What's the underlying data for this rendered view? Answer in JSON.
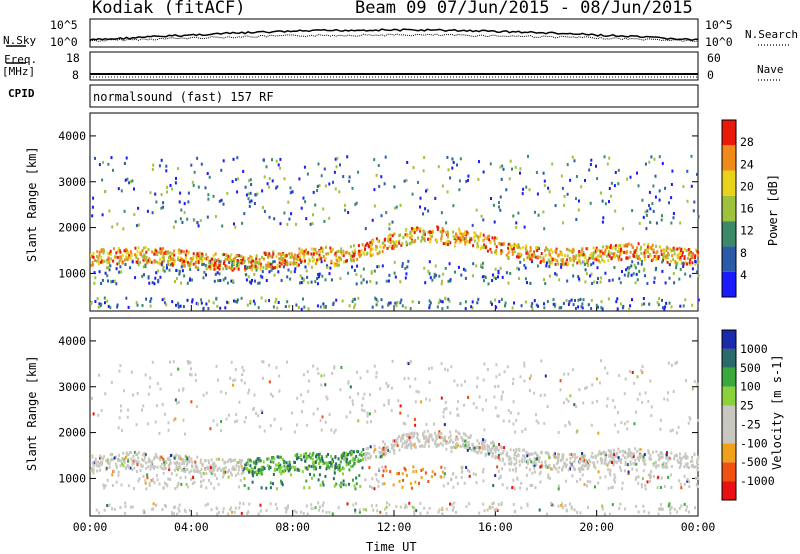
{
  "header": {
    "site": "Kodiak (fitACF)",
    "beam_dates": "Beam 09  07/Jun/2015 - 08/Jun/2015"
  },
  "left_labels": {
    "nsky": "N.Sky",
    "freq": "Freq.",
    "mhz": "[MHz]",
    "cpid": "CPID"
  },
  "right_labels": {
    "nsearch": "N.Search",
    "nave": "Nave"
  },
  "noise_panel": {
    "ticks_left": [
      "10^5",
      "10^0"
    ],
    "ticks_right": [
      "10^5",
      "10^0"
    ]
  },
  "freq_panel": {
    "ticks_left": [
      "18",
      "8"
    ],
    "ticks_right": [
      "60",
      "0"
    ]
  },
  "cpid_text": "normalsound (fast) 157 RF",
  "x_axis": {
    "label": "Time UT",
    "ticks": [
      "00:00",
      "04:00",
      "08:00",
      "12:00",
      "16:00",
      "20:00",
      "00:00"
    ]
  },
  "chart_data": [
    {
      "type": "heatmap",
      "panel": "power",
      "ylabel": "Slant Range [km]",
      "yticks": [
        1000,
        2000,
        3000,
        4000
      ],
      "ylim": [
        180,
        4500
      ],
      "colorbar": {
        "label": "Power [dB]",
        "ticks": [
          "4",
          "8",
          "12",
          "16",
          "20",
          "24",
          "28"
        ],
        "colors": [
          "#1a1aff",
          "#2a5aa8",
          "#3a8a6a",
          "#9ec23c",
          "#e8d21a",
          "#f08a1a",
          "#e81a0a"
        ]
      }
    },
    {
      "type": "heatmap",
      "panel": "velocity",
      "ylabel": "Slant Range [km]",
      "yticks": [
        1000,
        2000,
        3000,
        4000
      ],
      "ylim": [
        180,
        4500
      ],
      "colorbar": {
        "label": "Velocity [m s-1]",
        "ticks": [
          "1000",
          "500",
          "100",
          "25",
          "-25",
          "-100",
          "-500",
          "-1000"
        ],
        "colors": [
          "#1a2aa8",
          "#2a6a6a",
          "#3aa83a",
          "#8ad23a",
          "#c8c8c0",
          "#c8c8c0",
          "#f0a01a",
          "#f05010",
          "#e81010"
        ]
      }
    }
  ]
}
